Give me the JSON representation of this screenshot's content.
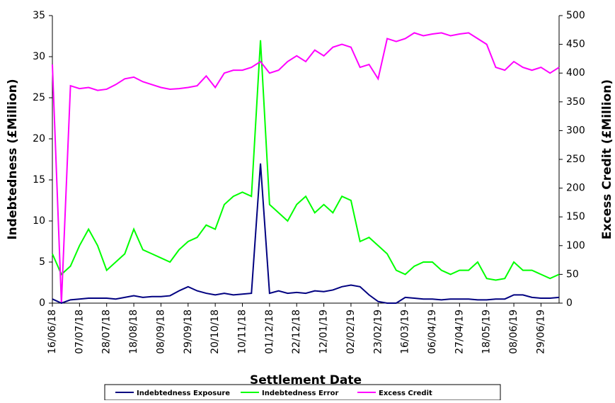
{
  "chart_data": {
    "type": "line",
    "x_label": "Settlement Date",
    "y_label": "Indebtedness (£Million)",
    "y2_label": "Excess Credit (£Million)",
    "x": [
      "16/06/18",
      "23/06/18",
      "30/06/18",
      "07/07/18",
      "14/07/18",
      "21/07/18",
      "28/07/18",
      "04/08/18",
      "11/08/18",
      "18/08/18",
      "25/08/18",
      "01/09/18",
      "08/09/18",
      "15/09/18",
      "22/09/18",
      "29/09/18",
      "06/10/18",
      "13/10/18",
      "20/10/18",
      "27/10/18",
      "03/11/18",
      "10/11/18",
      "17/11/18",
      "24/11/18",
      "01/12/18",
      "08/12/18",
      "15/12/18",
      "22/12/18",
      "29/12/18",
      "05/01/19",
      "12/01/19",
      "19/01/19",
      "26/01/19",
      "02/02/19",
      "09/02/19",
      "16/02/19",
      "23/02/19",
      "02/03/19",
      "09/03/19",
      "16/03/19",
      "23/03/19",
      "30/03/19",
      "06/04/19",
      "13/04/19",
      "20/04/19",
      "27/04/19",
      "04/05/19",
      "11/05/19",
      "18/05/19",
      "25/05/19",
      "01/06/19",
      "08/06/19",
      "15/06/19",
      "22/06/19",
      "29/06/19",
      "06/07/19",
      "13/07/19"
    ],
    "xlim": [
      "16/06/18",
      "13/07/19"
    ],
    "xticks": [
      "16/06/18",
      "07/07/18",
      "28/07/18",
      "18/08/18",
      "08/09/18",
      "29/09/18",
      "20/10/18",
      "10/11/18",
      "01/12/18",
      "22/12/18",
      "12/01/19",
      "02/02/19",
      "23/02/19",
      "16/03/19",
      "06/04/19",
      "27/04/19",
      "18/05/19",
      "08/06/19",
      "29/06/19"
    ],
    "ylim": [
      0,
      35
    ],
    "yticks": [
      0,
      5,
      10,
      15,
      20,
      25,
      30,
      35
    ],
    "y2lim": [
      0,
      500
    ],
    "y2ticks": [
      0,
      50,
      100,
      150,
      200,
      250,
      300,
      350,
      400,
      450,
      500
    ],
    "series": [
      {
        "name": "Indebtedness Exposure",
        "color": "#000080",
        "values": [
          0.5,
          0,
          0.4,
          0.5,
          0.6,
          0.6,
          0.6,
          0.5,
          0.7,
          0.9,
          0.7,
          0.8,
          0.8,
          0.9,
          1.5,
          2,
          1.5,
          1.2,
          1.0,
          1.2,
          1.0,
          1.1,
          1.2,
          17,
          1.2,
          1.5,
          1.2,
          1.3,
          1.2,
          1.5,
          1.4,
          1.6,
          2.0,
          2.2,
          2.0,
          1.0,
          0.2,
          0,
          0,
          0.7,
          0.6,
          0.5,
          0.5,
          0.4,
          0.5,
          0.5,
          0.5,
          0.4,
          0.4,
          0.5,
          0.5,
          1.0,
          1.0,
          0.7,
          0.6,
          0.6,
          0.7
        ]
      },
      {
        "name": "Indebtedness Error",
        "color": "#00ff00",
        "values": [
          6,
          3.5,
          4.5,
          7,
          9,
          7,
          4,
          5,
          6,
          9,
          6.5,
          6,
          5.5,
          5,
          6.5,
          7.5,
          8,
          9.5,
          9,
          12,
          13,
          13.5,
          13,
          32,
          12,
          11,
          10,
          12,
          13,
          11,
          12,
          11,
          13,
          12.5,
          7.5,
          8,
          7,
          6,
          4,
          3.5,
          4.5,
          5,
          5,
          4,
          3.5,
          4,
          4,
          5,
          3,
          2.8,
          3,
          5,
          4,
          4,
          3.5,
          3,
          3.5
        ]
      },
      {
        "name": "Excess Credit",
        "color": "#ff00ff",
        "axis": "y2",
        "values": [
          415,
          0,
          378,
          373,
          375,
          370,
          372,
          380,
          390,
          393,
          385,
          380,
          375,
          372,
          373,
          375,
          378,
          395,
          375,
          400,
          405,
          405,
          410,
          420,
          400,
          405,
          420,
          430,
          420,
          440,
          430,
          445,
          450,
          445,
          410,
          415,
          390,
          460,
          455,
          460,
          470,
          465,
          468,
          470,
          465,
          468,
          470,
          460,
          450,
          410,
          405,
          420,
          410,
          405,
          410,
          400,
          410
        ]
      }
    ]
  }
}
